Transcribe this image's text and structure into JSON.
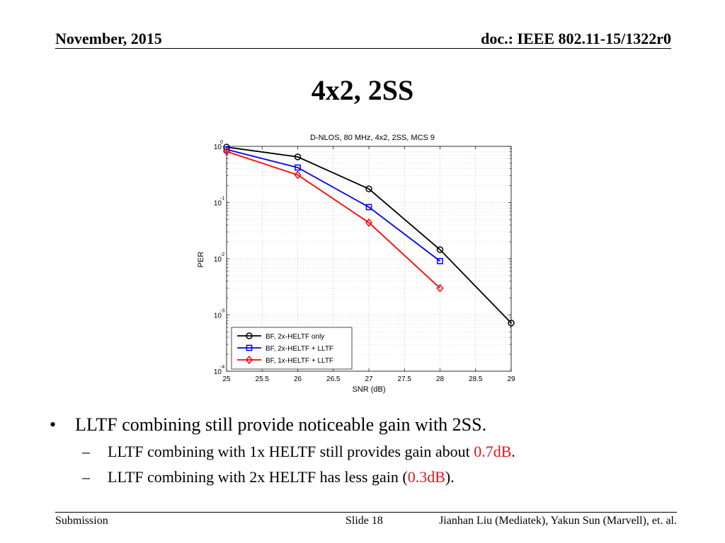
{
  "header": {
    "date": "November, 2015",
    "doc": "doc.: IEEE 802.11-15/1322r0"
  },
  "slide": {
    "title": "4x2, 2SS"
  },
  "chart_data": {
    "type": "line",
    "title": "D-NLOS, 80 MHz, 4x2, 2SS, MCS 9",
    "xlabel": "SNR (dB)",
    "ylabel": "PER",
    "xlim": [
      25,
      29
    ],
    "ylim": [
      0.0001,
      1
    ],
    "yscale": "log",
    "grid": true,
    "xticks": [
      "25",
      "25.5",
      "26",
      "26.5",
      "27",
      "27.5",
      "28",
      "28.5",
      "29"
    ],
    "yticks": [
      {
        "base": "10",
        "exp": "0"
      },
      {
        "base": "10",
        "exp": "-1"
      },
      {
        "base": "10",
        "exp": "-2"
      },
      {
        "base": "10",
        "exp": "-3"
      },
      {
        "base": "10",
        "exp": "-4"
      }
    ],
    "legend_position": "bottom-left",
    "series": [
      {
        "name": "BF, 2x-HELTF only",
        "color": "#000000",
        "marker": "circle",
        "x": [
          25,
          26,
          27,
          28,
          29
        ],
        "y": [
          0.97,
          0.65,
          0.175,
          0.0145,
          0.00072
        ]
      },
      {
        "name": "BF, 2x-HELTF + LLTF",
        "color": "#0000ff",
        "marker": "square",
        "x": [
          25,
          26,
          27,
          28
        ],
        "y": [
          0.88,
          0.42,
          0.083,
          0.0091
        ]
      },
      {
        "name": "BF, 1x-HELTF + LLTF",
        "color": "#ff0000",
        "marker": "diamond",
        "x": [
          25,
          26,
          27,
          28
        ],
        "y": [
          0.81,
          0.31,
          0.044,
          0.003
        ]
      }
    ]
  },
  "bullets": {
    "main": "LLTF combining still provide noticeable gain with 2SS.",
    "sub1_text": "LLTF combining with 1x HELTF still provides gain about ",
    "sub1_highlight": "0.7dB",
    "sub1_end": ".",
    "sub2_text": "LLTF combining with 2x HELTF has less gain (",
    "sub2_highlight": "0.3dB",
    "sub2_end": ")."
  },
  "footer": {
    "left": "Submission",
    "center": "Slide 18",
    "right": "Jianhan Liu (Mediatek), Yakun Sun (Marvell),  et. al."
  }
}
